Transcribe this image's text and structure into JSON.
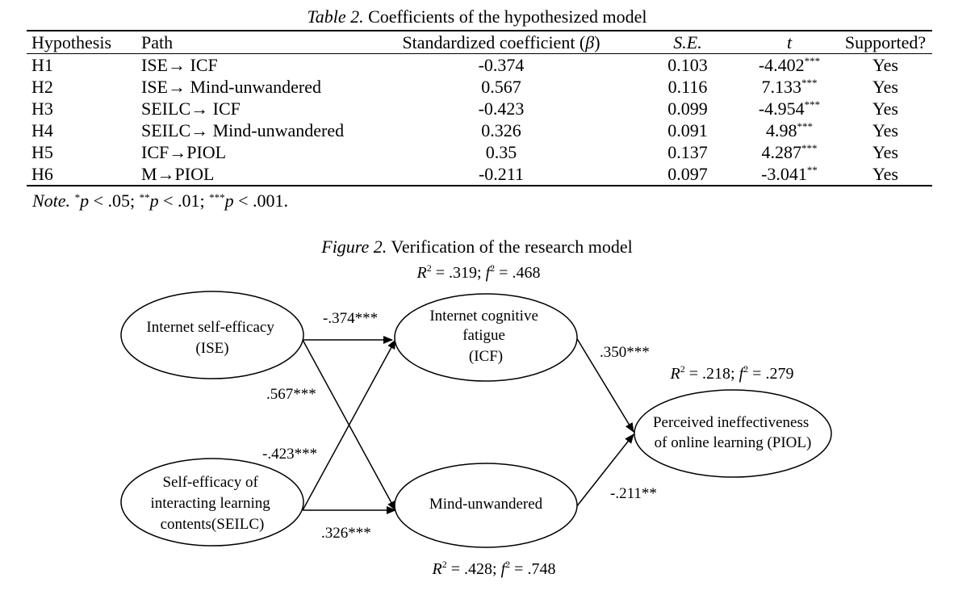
{
  "table": {
    "caption_lead": "Table 2.",
    "caption_rest": " Coefficients of the hypothesized model",
    "headers": {
      "hypothesis": "Hypothesis",
      "path": "Path",
      "beta": "Standardized coefficient (",
      "beta_symbol": "β",
      "beta_close": ")",
      "se": "S.E.",
      "t": "t",
      "supported": "Supported?"
    },
    "rows": [
      {
        "hyp": "H1",
        "path": "ISE→ ICF",
        "beta": "-0.374",
        "se": "0.103",
        "t": "-4.402",
        "sig": "***",
        "supported": "Yes"
      },
      {
        "hyp": "H2",
        "path": "ISE→ Mind-unwandered",
        "beta": "0.567",
        "se": "0.116",
        "t": "7.133",
        "sig": "***",
        "supported": "Yes"
      },
      {
        "hyp": "H3",
        "path": "SEILC→ ICF",
        "beta": "-0.423",
        "se": "0.099",
        "t": "-4.954",
        "sig": "***",
        "supported": "Yes"
      },
      {
        "hyp": "H4",
        "path": "SEILC→ Mind-unwandered",
        "beta": "0.326",
        "se": "0.091",
        "t": "4.98",
        "sig": "***",
        "supported": "Yes"
      },
      {
        "hyp": "H5",
        "path": "ICF→PIOL",
        "beta": "0.35",
        "se": "0.137",
        "t": "4.287",
        "sig": "***",
        "supported": "Yes"
      },
      {
        "hyp": "H6",
        "path": "M→PIOL",
        "beta": "-0.211",
        "se": "0.097",
        "t": "-3.041",
        "sig": "**",
        "supported": "Yes"
      }
    ],
    "note": {
      "lead": "Note.",
      "sig1": "*",
      "p1": "p",
      "t1": " < .05; ",
      "sig2": "**",
      "p2": "p",
      "t2": " < .01; ",
      "sig3": "***",
      "p3": "p",
      "t3": " < .001."
    }
  },
  "figure": {
    "caption_lead": "Figure 2.",
    "caption_rest": " Verification of the research model",
    "nodes": {
      "ise": [
        "Internet self-efficacy",
        "(ISE)"
      ],
      "seilc": [
        "Self-efficacy of",
        "interacting learning",
        "contents(SEILC)"
      ],
      "icf": [
        "Internet cognitive",
        "fatigue",
        "(ICF)"
      ],
      "mind": [
        "Mind-unwandered"
      ],
      "piol": [
        "Perceived ineffectiveness",
        "of online learning (PIOL)"
      ]
    },
    "paths": {
      "ise_icf": "-.374***",
      "ise_mind": ".567***",
      "seilc_icf": "-.423***",
      "seilc_mind": ".326***",
      "icf_piol": ".350***",
      "mind_piol": "-.211**"
    },
    "r2": {
      "icf": {
        "r": "R",
        "r_sup": "2",
        "r_val": " = .319; ",
        "f": "f",
        "f_sup": "2",
        "f_val": " = .468"
      },
      "piol": {
        "r": "R",
        "r_sup": "2",
        "r_val": " = .218; ",
        "f": "f",
        "f_sup": "2",
        "f_val": " = .279"
      },
      "mind": {
        "r": "R",
        "r_sup": "2",
        "r_val": " = .428; ",
        "f": "f",
        "f_sup": "2",
        "f_val": " = .748"
      }
    }
  }
}
